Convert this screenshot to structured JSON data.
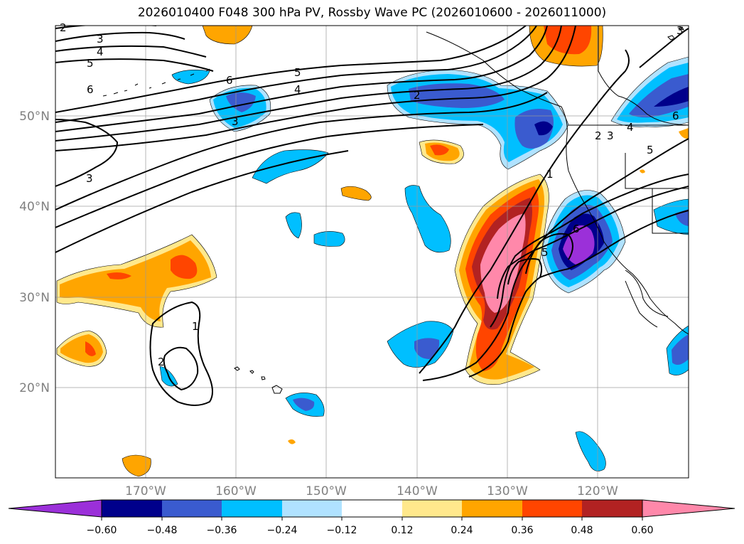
{
  "title": "2026010400 F048 300 hPa PV, Rossby Wave PC (2026010600 - 2026011000)",
  "lat_labels": [
    "50°N",
    "40°N",
    "30°N",
    "20°N"
  ],
  "lon_labels": [
    "170°W",
    "160°W",
    "150°W",
    "140°W",
    "130°W",
    "120°W"
  ],
  "pv_contour_labels": [
    "2",
    "3",
    "4",
    "5",
    "6",
    "6",
    "5",
    "4",
    "3",
    "2",
    "3",
    "1",
    "2",
    "2",
    "3",
    "4",
    "5",
    "6",
    "3",
    "1",
    "5",
    "6"
  ],
  "colorbar": {
    "ticks": [
      "−0.60",
      "−0.48",
      "−0.36",
      "−0.24",
      "−0.12",
      "0.12",
      "0.24",
      "0.36",
      "0.48",
      "0.60"
    ],
    "colors": [
      "#9b30d9",
      "#00008b",
      "#3a5bcf",
      "#00bfff",
      "#b0e2ff",
      "#ffffff",
      "#ffe88c",
      "#ffa500",
      "#ff4500",
      "#b22222",
      "#ff88aa",
      "#ff88aa"
    ]
  },
  "fill_colors": {
    "neg1": "#b0e2ff",
    "neg2": "#00bfff",
    "neg3": "#3a5bcf",
    "neg4": "#00008b",
    "neg5": "#9b30d9",
    "pos1": "#ffe88c",
    "pos2": "#ffa500",
    "pos3": "#ff4500",
    "pos4": "#b22222",
    "pos5": "#ff88aa"
  }
}
